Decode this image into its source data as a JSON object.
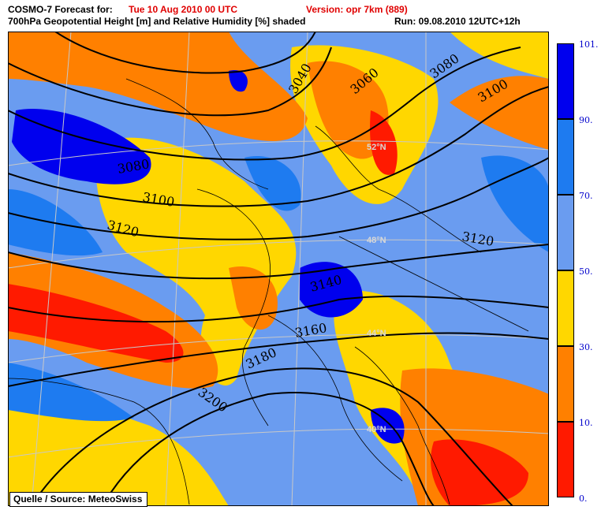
{
  "header": {
    "forecast_label": "COSMO-7 Forecast for:",
    "forecast_date": "Tue 10 Aug 2010 00 UTC",
    "version": "Version: opr 7km (889)",
    "subtitle": "700hPa Geopotential Height [m] and Relative Humidity [%] shaded",
    "run": "Run: 09.08.2010 12UTC+12h"
  },
  "legend": {
    "colors": [
      "#0000ee",
      "#1e7bf0",
      "#6a9cf0",
      "#ffd700",
      "#ff8000",
      "#ff1a00"
    ],
    "ticks": [
      "101.",
      "90.",
      "70.",
      "50.",
      "30.",
      "10.",
      "0."
    ]
  },
  "contour_labels": [
    "3040",
    "3060",
    "3080",
    "3100",
    "3080",
    "3100",
    "3120",
    "3120",
    "3140",
    "3160",
    "3180",
    "3200"
  ],
  "lat_labels": [
    "52°N",
    "48°N",
    "44°N",
    "40°N"
  ],
  "source": "Quelle / Source: MeteoSwiss"
}
